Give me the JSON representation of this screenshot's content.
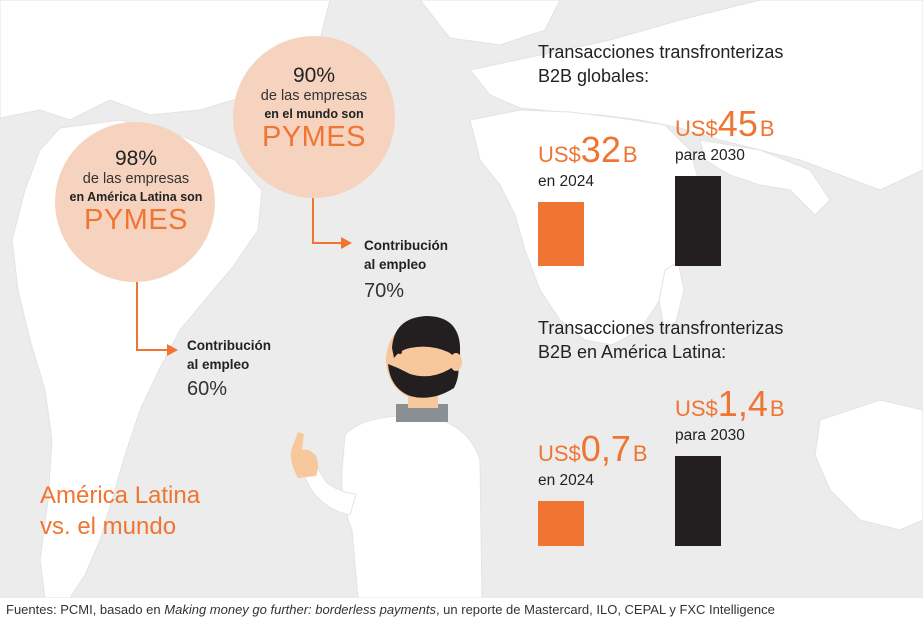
{
  "infographic": {
    "circles": [
      {
        "percent": "98%",
        "line1": "de las empresas",
        "line2": "en América Latina son",
        "highlight": "PYMES",
        "employment_label_1": "Contribución",
        "employment_label_2": "al empleo",
        "employment_value": "60%"
      },
      {
        "percent": "90%",
        "line1": "de las empresas",
        "line2": "en el mundo son",
        "highlight": "PYMES",
        "employment_label_1": "Contribución",
        "employment_label_2": "al empleo",
        "employment_value": "70%"
      }
    ],
    "region_title_1": "América Latina",
    "region_title_2": "vs. el mundo",
    "colors": {
      "accent": "#f07532",
      "circle_fill": "#f6d3bf",
      "bar_2030": "#231f20",
      "map_land": "#ffffff",
      "map_sea": "#ececec"
    },
    "illustration": "man-pointing-figure"
  },
  "chart_data": [
    {
      "type": "bar",
      "title_line1": "Transacciones transfronterizas",
      "title_line2": "B2B globales:",
      "categories": [
        "en 2024",
        "para 2030"
      ],
      "values": [
        32,
        45
      ],
      "value_labels": [
        {
          "currency": "US$",
          "number": "32",
          "unit": "B"
        },
        {
          "currency": "US$",
          "number": "45",
          "unit": "B"
        }
      ],
      "colors": [
        "#f07532",
        "#231f20"
      ]
    },
    {
      "type": "bar",
      "title_line1": "Transacciones transfronterizas",
      "title_line2": "B2B en América Latina:",
      "categories": [
        "en 2024",
        "para 2030"
      ],
      "values": [
        0.7,
        1.4
      ],
      "value_labels": [
        {
          "currency": "US$",
          "number": "0,7",
          "unit": "B"
        },
        {
          "currency": "US$",
          "number": "1,4",
          "unit": "B"
        }
      ],
      "colors": [
        "#f07532",
        "#231f20"
      ]
    }
  ],
  "footer": {
    "prefix": "Fuentes: PCMI, basado en ",
    "italic": "Making money go further: borderless payments",
    "suffix": ", un reporte de Mastercard, ILO, CEPAL y FXC Intelligence"
  }
}
